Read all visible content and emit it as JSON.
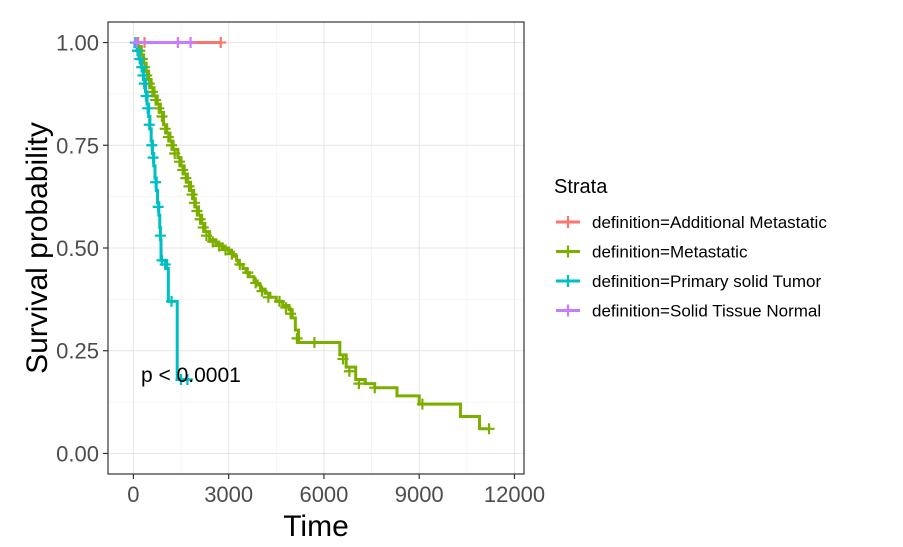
{
  "chart_data": {
    "type": "line",
    "subtype": "kaplan-meier survival curve",
    "xlabel": "Time",
    "ylabel": "Survival probability",
    "xlim": [
      -800,
      12300
    ],
    "ylim": [
      -0.05,
      1.05
    ],
    "x_ticks": [
      0,
      3000,
      6000,
      9000,
      12000
    ],
    "x_tick_labels": [
      "0",
      "3000",
      "6000",
      "9000",
      "12000"
    ],
    "y_ticks": [
      0,
      0.25,
      0.5,
      0.75,
      1.0
    ],
    "y_tick_labels": [
      "0.00",
      "0.25",
      "0.50",
      "0.75",
      "1.00"
    ],
    "grid": true,
    "legend": {
      "title": "Strata",
      "position": "right"
    },
    "annotation": "p < 0.0001",
    "series": [
      {
        "name": "definition=Additional Metastatic",
        "color": "#F8766D",
        "steps": [
          [
            0,
            1.0
          ],
          [
            2750,
            1.0
          ]
        ],
        "censors": [
          [
            150,
            1.0
          ],
          [
            350,
            1.0
          ],
          [
            2750,
            1.0
          ]
        ]
      },
      {
        "name": "definition=Metastatic",
        "color": "#7CAE00",
        "steps": [
          [
            0,
            1.0
          ],
          [
            150,
            0.99
          ],
          [
            250,
            0.97
          ],
          [
            320,
            0.95
          ],
          [
            400,
            0.93
          ],
          [
            480,
            0.91
          ],
          [
            560,
            0.89
          ],
          [
            650,
            0.87
          ],
          [
            750,
            0.85
          ],
          [
            850,
            0.83
          ],
          [
            950,
            0.8
          ],
          [
            1050,
            0.78
          ],
          [
            1150,
            0.76
          ],
          [
            1250,
            0.74
          ],
          [
            1400,
            0.72
          ],
          [
            1500,
            0.7
          ],
          [
            1600,
            0.68
          ],
          [
            1700,
            0.66
          ],
          [
            1800,
            0.64
          ],
          [
            1900,
            0.62
          ],
          [
            1950,
            0.6
          ],
          [
            2050,
            0.58
          ],
          [
            2150,
            0.56
          ],
          [
            2250,
            0.54
          ],
          [
            2400,
            0.52
          ],
          [
            2600,
            0.51
          ],
          [
            2800,
            0.5
          ],
          [
            3000,
            0.49
          ],
          [
            3150,
            0.48
          ],
          [
            3250,
            0.47
          ],
          [
            3300,
            0.46
          ],
          [
            3450,
            0.45
          ],
          [
            3550,
            0.44
          ],
          [
            3650,
            0.43
          ],
          [
            3800,
            0.42
          ],
          [
            3900,
            0.41
          ],
          [
            4000,
            0.4
          ],
          [
            4150,
            0.39
          ],
          [
            4300,
            0.38
          ],
          [
            4500,
            0.37
          ],
          [
            4700,
            0.36
          ],
          [
            4900,
            0.35
          ],
          [
            5000,
            0.33
          ],
          [
            5100,
            0.3
          ],
          [
            5200,
            0.27
          ],
          [
            5400,
            0.27
          ],
          [
            5600,
            0.27
          ],
          [
            6500,
            0.24
          ],
          [
            6700,
            0.21
          ],
          [
            7000,
            0.18
          ],
          [
            7300,
            0.17
          ],
          [
            7600,
            0.16
          ],
          [
            8300,
            0.14
          ],
          [
            9000,
            0.12
          ],
          [
            10300,
            0.09
          ],
          [
            10900,
            0.06
          ],
          [
            11200,
            0.06
          ]
        ],
        "censors": [
          [
            120,
            1.0
          ],
          [
            200,
            0.98
          ],
          [
            280,
            0.96
          ],
          [
            350,
            0.94
          ],
          [
            420,
            0.92
          ],
          [
            500,
            0.9
          ],
          [
            600,
            0.88
          ],
          [
            700,
            0.86
          ],
          [
            800,
            0.84
          ],
          [
            900,
            0.82
          ],
          [
            1000,
            0.79
          ],
          [
            1100,
            0.77
          ],
          [
            1200,
            0.75
          ],
          [
            1300,
            0.73
          ],
          [
            1450,
            0.71
          ],
          [
            1550,
            0.69
          ],
          [
            1650,
            0.67
          ],
          [
            1750,
            0.65
          ],
          [
            1850,
            0.63
          ],
          [
            1920,
            0.61
          ],
          [
            2000,
            0.59
          ],
          [
            2100,
            0.57
          ],
          [
            2200,
            0.55
          ],
          [
            2300,
            0.53
          ],
          [
            2500,
            0.515
          ],
          [
            2700,
            0.505
          ],
          [
            2900,
            0.495
          ],
          [
            3100,
            0.485
          ],
          [
            3350,
            0.46
          ],
          [
            3600,
            0.44
          ],
          [
            3850,
            0.415
          ],
          [
            4050,
            0.395
          ],
          [
            4250,
            0.38
          ],
          [
            4600,
            0.37
          ],
          [
            4800,
            0.355
          ],
          [
            4950,
            0.34
          ],
          [
            5150,
            0.28
          ],
          [
            5700,
            0.27
          ],
          [
            6600,
            0.23
          ],
          [
            6800,
            0.2
          ],
          [
            7100,
            0.17
          ],
          [
            7600,
            0.16
          ],
          [
            9100,
            0.12
          ],
          [
            11200,
            0.06
          ]
        ]
      },
      {
        "name": "definition=Primary solid Tumor",
        "color": "#00BFC4",
        "steps": [
          [
            0,
            1.0
          ],
          [
            50,
            0.99
          ],
          [
            120,
            0.98
          ],
          [
            180,
            0.96
          ],
          [
            250,
            0.94
          ],
          [
            320,
            0.91
          ],
          [
            380,
            0.88
          ],
          [
            430,
            0.85
          ],
          [
            480,
            0.82
          ],
          [
            520,
            0.79
          ],
          [
            560,
            0.76
          ],
          [
            600,
            0.73
          ],
          [
            640,
            0.7
          ],
          [
            680,
            0.67
          ],
          [
            720,
            0.64
          ],
          [
            760,
            0.61
          ],
          [
            800,
            0.58
          ],
          [
            830,
            0.55
          ],
          [
            850,
            0.52
          ],
          [
            870,
            0.47
          ],
          [
            1050,
            0.45
          ],
          [
            1100,
            0.37
          ],
          [
            1350,
            0.37
          ],
          [
            1380,
            0.18
          ],
          [
            1750,
            0.18
          ]
        ],
        "censors": [
          [
            60,
            1.0
          ],
          [
            130,
            0.98
          ],
          [
            200,
            0.96
          ],
          [
            260,
            0.94
          ],
          [
            300,
            0.92
          ],
          [
            340,
            0.9
          ],
          [
            400,
            0.87
          ],
          [
            450,
            0.84
          ],
          [
            500,
            0.8
          ],
          [
            580,
            0.75
          ],
          [
            620,
            0.72
          ],
          [
            700,
            0.66
          ],
          [
            780,
            0.6
          ],
          [
            850,
            0.53
          ],
          [
            900,
            0.47
          ],
          [
            1000,
            0.46
          ],
          [
            1200,
            0.37
          ],
          [
            1500,
            0.18
          ],
          [
            1700,
            0.18
          ]
        ]
      },
      {
        "name": "definition=Solid Tissue Normal",
        "color": "#C77CFF",
        "steps": [
          [
            0,
            1.0
          ],
          [
            1800,
            1.0
          ]
        ],
        "censors": [
          [
            100,
            1.0
          ],
          [
            1400,
            1.0
          ],
          [
            1800,
            1.0
          ]
        ]
      }
    ]
  }
}
